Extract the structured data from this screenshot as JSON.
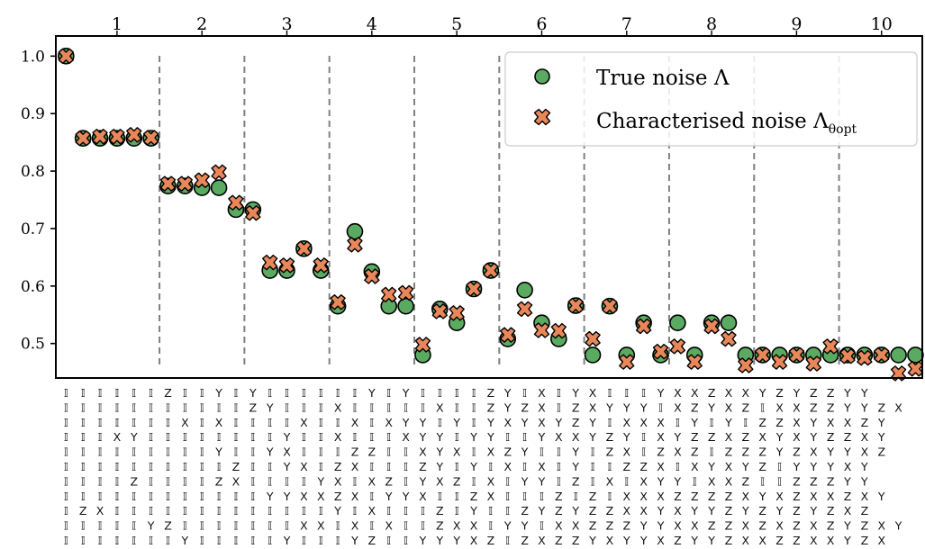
{
  "chart_data": {
    "type": "scatter",
    "ylim": [
      0.44,
      1.035
    ],
    "yticks": [
      "0.5",
      "0.6",
      "0.7",
      "0.8",
      "0.9",
      "1.0"
    ],
    "ytick_values": [
      0.5,
      0.6,
      0.7,
      0.8,
      0.9,
      1.0
    ],
    "group_labels": [
      "1",
      "2",
      "3",
      "4",
      "5",
      "6",
      "7",
      "8",
      "9",
      "10"
    ],
    "group_boundaries": [
      1.5,
      6.5,
      11.5,
      16.5,
      21.5,
      26.5,
      31.5,
      36.5,
      41.5,
      46.5,
      51.5
    ],
    "grid": false,
    "legend_position": "top-right",
    "series": [
      {
        "name": "True noise Λ",
        "marker": "circle",
        "color": "#5aab61",
        "values": [
          1.0,
          0.857,
          0.857,
          0.857,
          0.857,
          0.857,
          0.774,
          0.774,
          0.771,
          0.771,
          0.733,
          0.733,
          0.627,
          0.627,
          0.665,
          0.627,
          0.565,
          0.695,
          0.625,
          0.565,
          0.565,
          0.48,
          0.56,
          0.536,
          0.595,
          0.627,
          0.508,
          0.593,
          0.536,
          0.508,
          0.566,
          0.48,
          0.565,
          0.48,
          0.536,
          0.48,
          0.536,
          0.48,
          0.536,
          0.536,
          0.48,
          0.48,
          0.48,
          0.48,
          0.48,
          0.48,
          0.48,
          0.48,
          0.48,
          0.48,
          0.48
        ]
      },
      {
        "name": "Characterised noise Λθopt",
        "marker": "x",
        "color": "#e8875a",
        "values": [
          1.0,
          0.857,
          0.86,
          0.86,
          0.863,
          0.858,
          0.778,
          0.778,
          0.784,
          0.798,
          0.745,
          0.727,
          0.641,
          0.636,
          0.665,
          0.636,
          0.572,
          0.672,
          0.617,
          0.585,
          0.588,
          0.498,
          0.556,
          0.553,
          0.595,
          0.627,
          0.515,
          0.56,
          0.523,
          0.522,
          0.566,
          0.508,
          0.565,
          0.468,
          0.53,
          0.486,
          0.495,
          0.468,
          0.53,
          0.508,
          0.462,
          0.48,
          0.468,
          0.48,
          0.465,
          0.495,
          0.478,
          0.475,
          0.48,
          0.448,
          0.456
        ]
      }
    ],
    "pauli_rows": [
      "𝕀𝕀𝕀𝕀𝕀𝕀Z𝕀𝕀Y𝕀Y𝕀𝕀𝕀𝕀𝕀𝕀Y𝕀Y𝕀𝕀𝕀𝕀ZY𝕀X𝕀YX𝕀𝕀𝕀YXXZXXYZYZZYY",
      "𝕀𝕀𝕀𝕀𝕀𝕀𝕀𝕀𝕀𝕀𝕀ZY𝕀𝕀𝕀X𝕀𝕀𝕀𝕀𝕀X𝕀𝕀ZYZX𝕀ZXYYY𝕀XZYXZ𝕀XXZZYYZX",
      "𝕀𝕀𝕀𝕀𝕀𝕀𝕀X𝕀X𝕀𝕀𝕀𝕀X𝕀𝕀X𝕀XYY𝕀Y𝕀YXYXYZY𝕀XXX𝕀Y𝕀Y𝕀ZZXYXXZY",
      "𝕀𝕀𝕀XY𝕀𝕀𝕀𝕀𝕀𝕀𝕀𝕀Y𝕀𝕀X𝕀𝕀𝕀XYY𝕀YY𝕀𝕀YXXYZY𝕀XYZZXZXYXYZZXY",
      "𝕀𝕀𝕀𝕀𝕀𝕀𝕀𝕀𝕀Y𝕀𝕀YX𝕀𝕀𝕀ZZ𝕀𝕀XYX𝕀XZY𝕀𝕀Y𝕀ZX𝕀ZXZ𝕀ZZZYZXYYXZ",
      "𝕀𝕀𝕀𝕀𝕀𝕀𝕀𝕀𝕀𝕀Z𝕀𝕀YX𝕀ZX𝕀𝕀𝕀ZY𝕀Y𝕀X𝕀X𝕀Y𝕀𝕀ZZX𝕀XYXYZ𝕀YYYXY",
      "𝕀𝕀𝕀𝕀Z𝕀𝕀𝕀𝕀ZX𝕀𝕀𝕀𝕀YX𝕀XZ𝕀YXZ𝕀X𝕀YY𝕀Z𝕀X𝕀XYY𝕀XXZ𝕀𝕀ZZZYY",
      "𝕀𝕀𝕀𝕀𝕀𝕀𝕀𝕀𝕀𝕀𝕀𝕀YYXXZX𝕀YYX𝕀𝕀ZX𝕀𝕀𝕀Z𝕀Z𝕀XXXZZZZXYXZXXZXY",
      "𝕀ZX𝕀𝕀𝕀𝕀𝕀𝕀𝕀𝕀𝕀𝕀𝕀𝕀𝕀Y𝕀X𝕀𝕀𝕀Z𝕀Y𝕀𝕀ZYZYZZXXYXYYZYZYZYZXZ",
      "𝕀𝕀𝕀𝕀𝕀YZ𝕀𝕀𝕀𝕀𝕀𝕀𝕀XX𝕀X𝕀X𝕀𝕀ZXX𝕀YY𝕀XXZZZYYXXZZXZXZXZYZXY",
      "𝕀𝕀𝕀𝕀𝕀𝕀𝕀Y𝕀𝕀𝕀𝕀𝕀Y𝕀𝕀𝕀YZ𝕀𝕀YYYXZ𝕀ZXZZYXYYXZYYZXXZZXXYZX"
    ],
    "legend": {
      "true_label": "True noise Λ",
      "char_label": "Characterised noise Λ",
      "char_sub": "θopt"
    }
  }
}
